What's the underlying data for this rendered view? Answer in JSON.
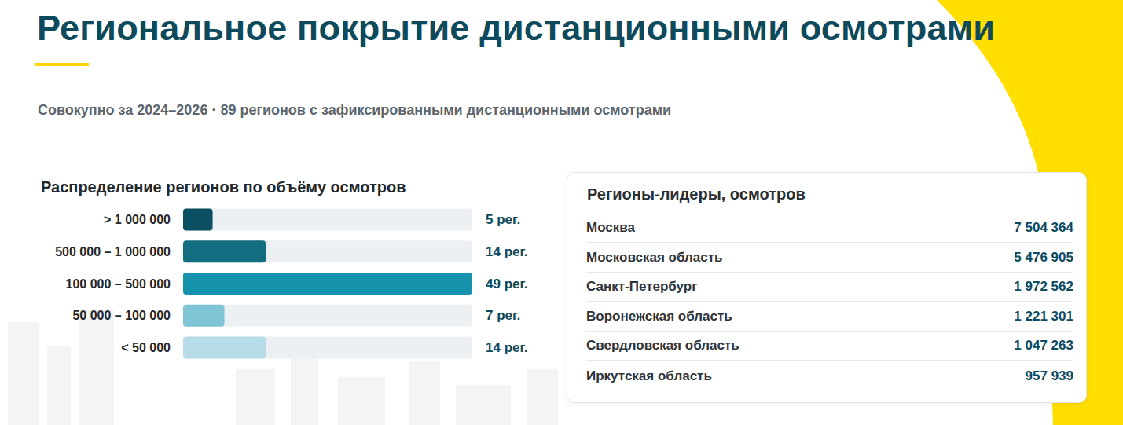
{
  "header": {
    "title": "Региональное покрытие дистанционными осмотрами",
    "subtitle": "Совокупно за 2024–2026 · 89 регионов с зафиксированными дистанционными осмотрами"
  },
  "chart_data": {
    "type": "bar",
    "orientation": "horizontal",
    "title": "Распределение регионов по объёму осмотров",
    "categories": [
      "> 1 000 000",
      "500 000 – 1 000 000",
      "100 000 – 500 000",
      "50 000 – 100 000",
      "< 50 000"
    ],
    "values": [
      5,
      14,
      49,
      7,
      14
    ],
    "value_labels": [
      "5 рег.",
      "14 рег.",
      "49 рег.",
      "7 рег.",
      "14 рег."
    ],
    "colors": [
      "#0b4f63",
      "#146e82",
      "#1792ad",
      "#7fc5d6",
      "#b6dde7"
    ],
    "xlim": [
      0,
      49
    ],
    "data_labels": true,
    "tick_labels": "y",
    "grid": false
  },
  "leaders": {
    "title": "Регионы-лидеры, осмотров",
    "rows": [
      [
        "Москва",
        "7 504 364"
      ],
      [
        "Московская область",
        "5 476 905"
      ],
      [
        "Санкт-Петербург",
        "1 972 562"
      ],
      [
        "Воронежская область",
        "1 221 301"
      ],
      [
        "Свердловская область",
        "1 047 263"
      ],
      [
        "Иркутская область",
        "957 939"
      ]
    ]
  }
}
